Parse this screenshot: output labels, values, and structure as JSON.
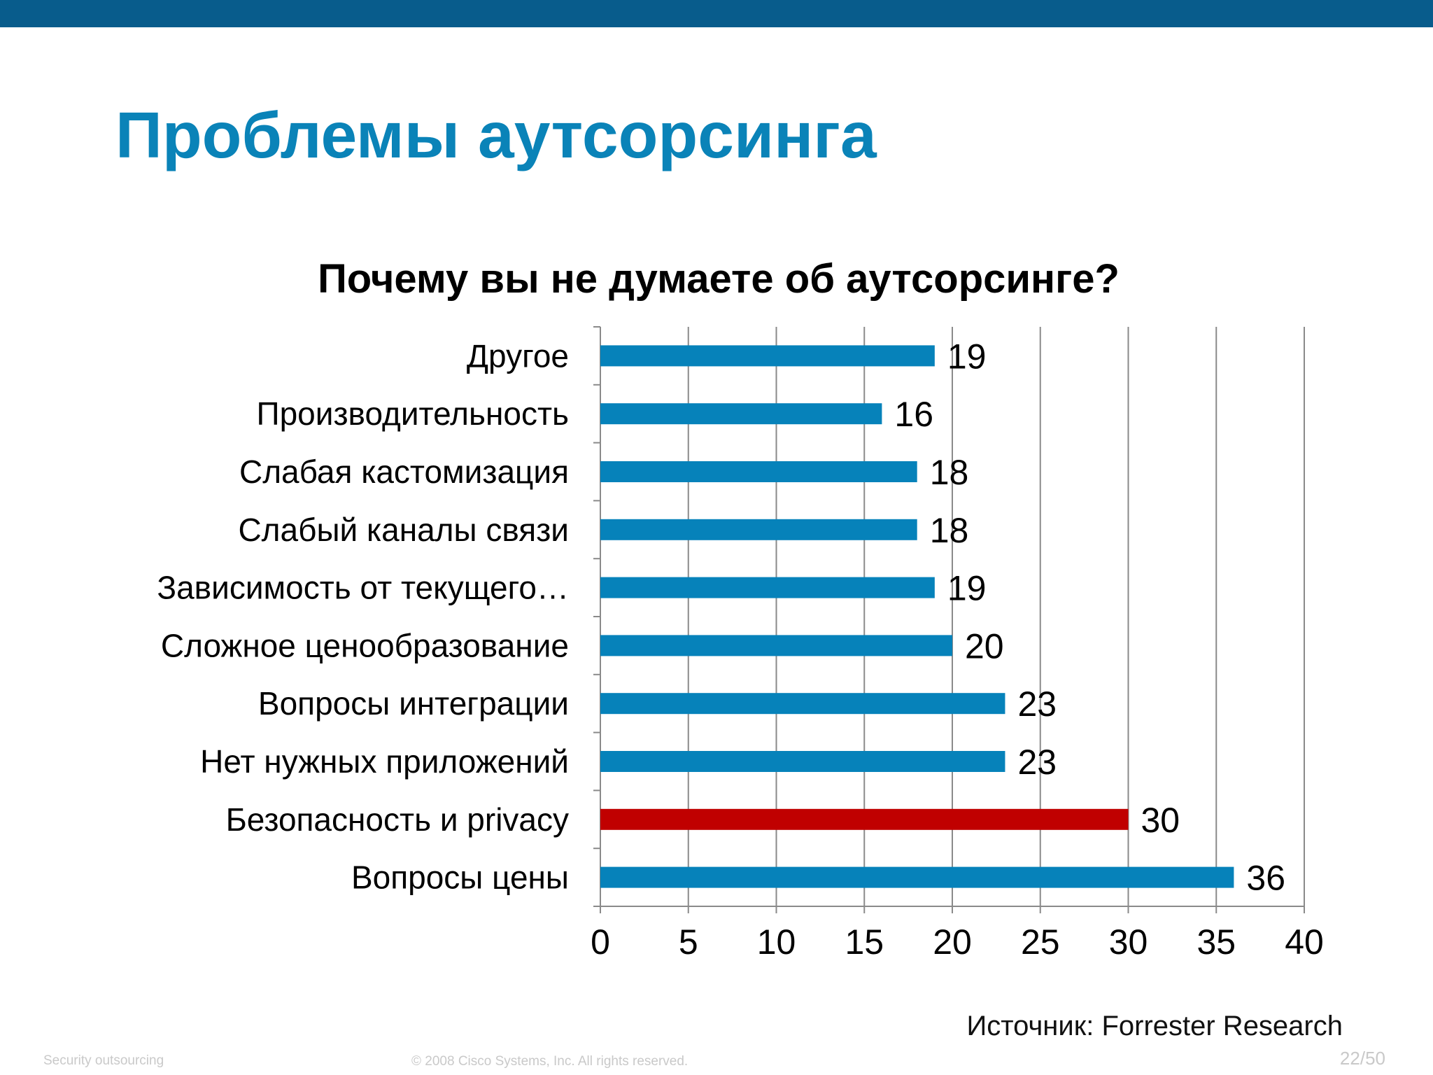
{
  "slide": {
    "title": "Проблемы аутсорсинга",
    "source": "Источник: Forrester Research",
    "footer_left": "Security outsourcing",
    "footer_center": "© 2008 Cisco Systems, Inc. All rights reserved.",
    "page": "22/50"
  },
  "colors": {
    "top_bar": "#085C8C",
    "title": "#0A83B8",
    "bar": "#0682BA",
    "highlight_bar": "#C00000"
  },
  "chart_data": {
    "type": "bar",
    "orientation": "horizontal",
    "title": "Почему вы не думаете об аутсорсинге?",
    "categories": [
      "Другое",
      "Производительность",
      "Слабая кастомизация",
      "Слабый каналы связи",
      "Зависимость от текущего…",
      "Сложное ценообразование",
      "Вопросы интеграции",
      "Нет нужных приложений",
      "Безопасность и privacy",
      "Вопросы цены"
    ],
    "values": [
      19,
      16,
      18,
      18,
      19,
      20,
      23,
      23,
      30,
      36
    ],
    "highlight_index": 8,
    "xlim": [
      0,
      40
    ],
    "xticks": [
      0,
      5,
      10,
      15,
      20,
      25,
      30,
      35,
      40
    ],
    "grid": true,
    "xlabel": "",
    "ylabel": ""
  }
}
